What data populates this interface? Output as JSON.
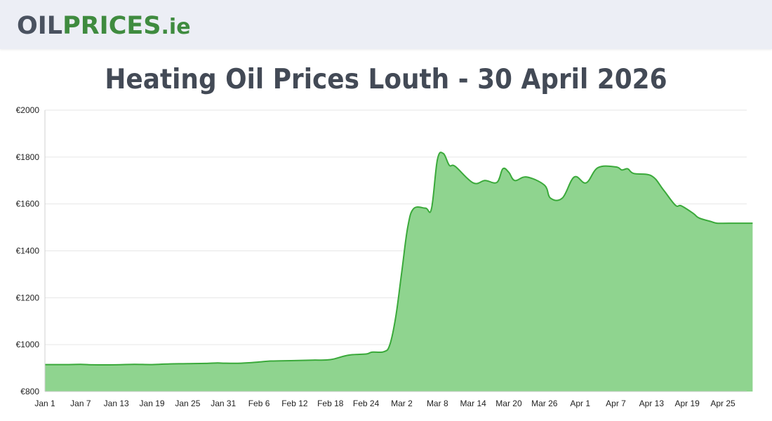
{
  "logo": {
    "part1": "OIL",
    "part2": "PRICES",
    "part3": ".ie"
  },
  "colors": {
    "fill": "#8fd48f",
    "line": "#3aa93a",
    "grid": "#e6e6e6",
    "header_bg": "#eceef5"
  },
  "chart_data": {
    "type": "area",
    "title": "Heating Oil Prices Louth - 30 April 2026",
    "xlabel": "",
    "ylabel": "",
    "ylim": [
      800,
      2000
    ],
    "grid": true,
    "yticks": [
      800,
      1000,
      1200,
      1400,
      1600,
      1800,
      2000
    ],
    "ytick_labels": [
      "€800",
      "€1000",
      "€1200",
      "€1400",
      "€1600",
      "€1800",
      "€2000"
    ],
    "xtick_labels": [
      "Jan 1",
      "Jan 7",
      "Jan 13",
      "Jan 19",
      "Jan 25",
      "Jan 31",
      "Feb 6",
      "Feb 12",
      "Feb 18",
      "Feb 24",
      "Mar 2",
      "Mar 8",
      "Mar 14",
      "Mar 20",
      "Mar 26",
      "Apr 1",
      "Apr 7",
      "Apr 13",
      "Apr 19",
      "Apr 25"
    ],
    "xtick_dates": [
      "2026-01-01",
      "2026-01-07",
      "2026-01-13",
      "2026-01-19",
      "2026-01-25",
      "2026-01-31",
      "2026-02-06",
      "2026-02-12",
      "2026-02-18",
      "2026-02-24",
      "2026-03-02",
      "2026-03-08",
      "2026-03-14",
      "2026-03-20",
      "2026-03-26",
      "2026-04-01",
      "2026-04-07",
      "2026-04-13",
      "2026-04-19",
      "2026-04-25"
    ],
    "x_range": [
      "2026-01-01",
      "2026-04-30"
    ],
    "series": [
      {
        "name": "",
        "points": [
          [
            "2026-01-01",
            915
          ],
          [
            "2026-01-05",
            915
          ],
          [
            "2026-01-07",
            916
          ],
          [
            "2026-01-09",
            914
          ],
          [
            "2026-01-13",
            914
          ],
          [
            "2026-01-16",
            916
          ],
          [
            "2026-01-19",
            915
          ],
          [
            "2026-01-22",
            918
          ],
          [
            "2026-01-25",
            919
          ],
          [
            "2026-01-28",
            920
          ],
          [
            "2026-01-30",
            922
          ],
          [
            "2026-01-31",
            921
          ],
          [
            "2026-02-03",
            921
          ],
          [
            "2026-02-06",
            926
          ],
          [
            "2026-02-08",
            930
          ],
          [
            "2026-02-12",
            932
          ],
          [
            "2026-02-15",
            934
          ],
          [
            "2026-02-18",
            936
          ],
          [
            "2026-02-21",
            955
          ],
          [
            "2026-02-24",
            960
          ],
          [
            "2026-02-25",
            968
          ],
          [
            "2026-02-27",
            970
          ],
          [
            "2026-02-28",
            1000
          ],
          [
            "2026-03-01",
            1120
          ],
          [
            "2026-03-02",
            1310
          ],
          [
            "2026-03-03",
            1500
          ],
          [
            "2026-03-04",
            1580
          ],
          [
            "2026-03-06",
            1582
          ],
          [
            "2026-03-07",
            1580
          ],
          [
            "2026-03-08",
            1790
          ],
          [
            "2026-03-09",
            1815
          ],
          [
            "2026-03-10",
            1765
          ],
          [
            "2026-03-11",
            1760
          ],
          [
            "2026-03-14",
            1690
          ],
          [
            "2026-03-16",
            1700
          ],
          [
            "2026-03-18",
            1692
          ],
          [
            "2026-03-19",
            1750
          ],
          [
            "2026-03-20",
            1735
          ],
          [
            "2026-03-21",
            1700
          ],
          [
            "2026-03-23",
            1715
          ],
          [
            "2026-03-26",
            1680
          ],
          [
            "2026-03-27",
            1625
          ],
          [
            "2026-03-29",
            1625
          ],
          [
            "2026-03-31",
            1715
          ],
          [
            "2026-04-02",
            1690
          ],
          [
            "2026-04-04",
            1755
          ],
          [
            "2026-04-07",
            1758
          ],
          [
            "2026-04-08",
            1745
          ],
          [
            "2026-04-09",
            1750
          ],
          [
            "2026-04-10",
            1730
          ],
          [
            "2026-04-13",
            1720
          ],
          [
            "2026-04-15",
            1660
          ],
          [
            "2026-04-17",
            1595
          ],
          [
            "2026-04-18",
            1592
          ],
          [
            "2026-04-20",
            1560
          ],
          [
            "2026-04-21",
            1540
          ],
          [
            "2026-04-23",
            1525
          ],
          [
            "2026-04-24",
            1518
          ],
          [
            "2026-04-26",
            1518
          ],
          [
            "2026-04-30",
            1518
          ]
        ]
      }
    ]
  }
}
